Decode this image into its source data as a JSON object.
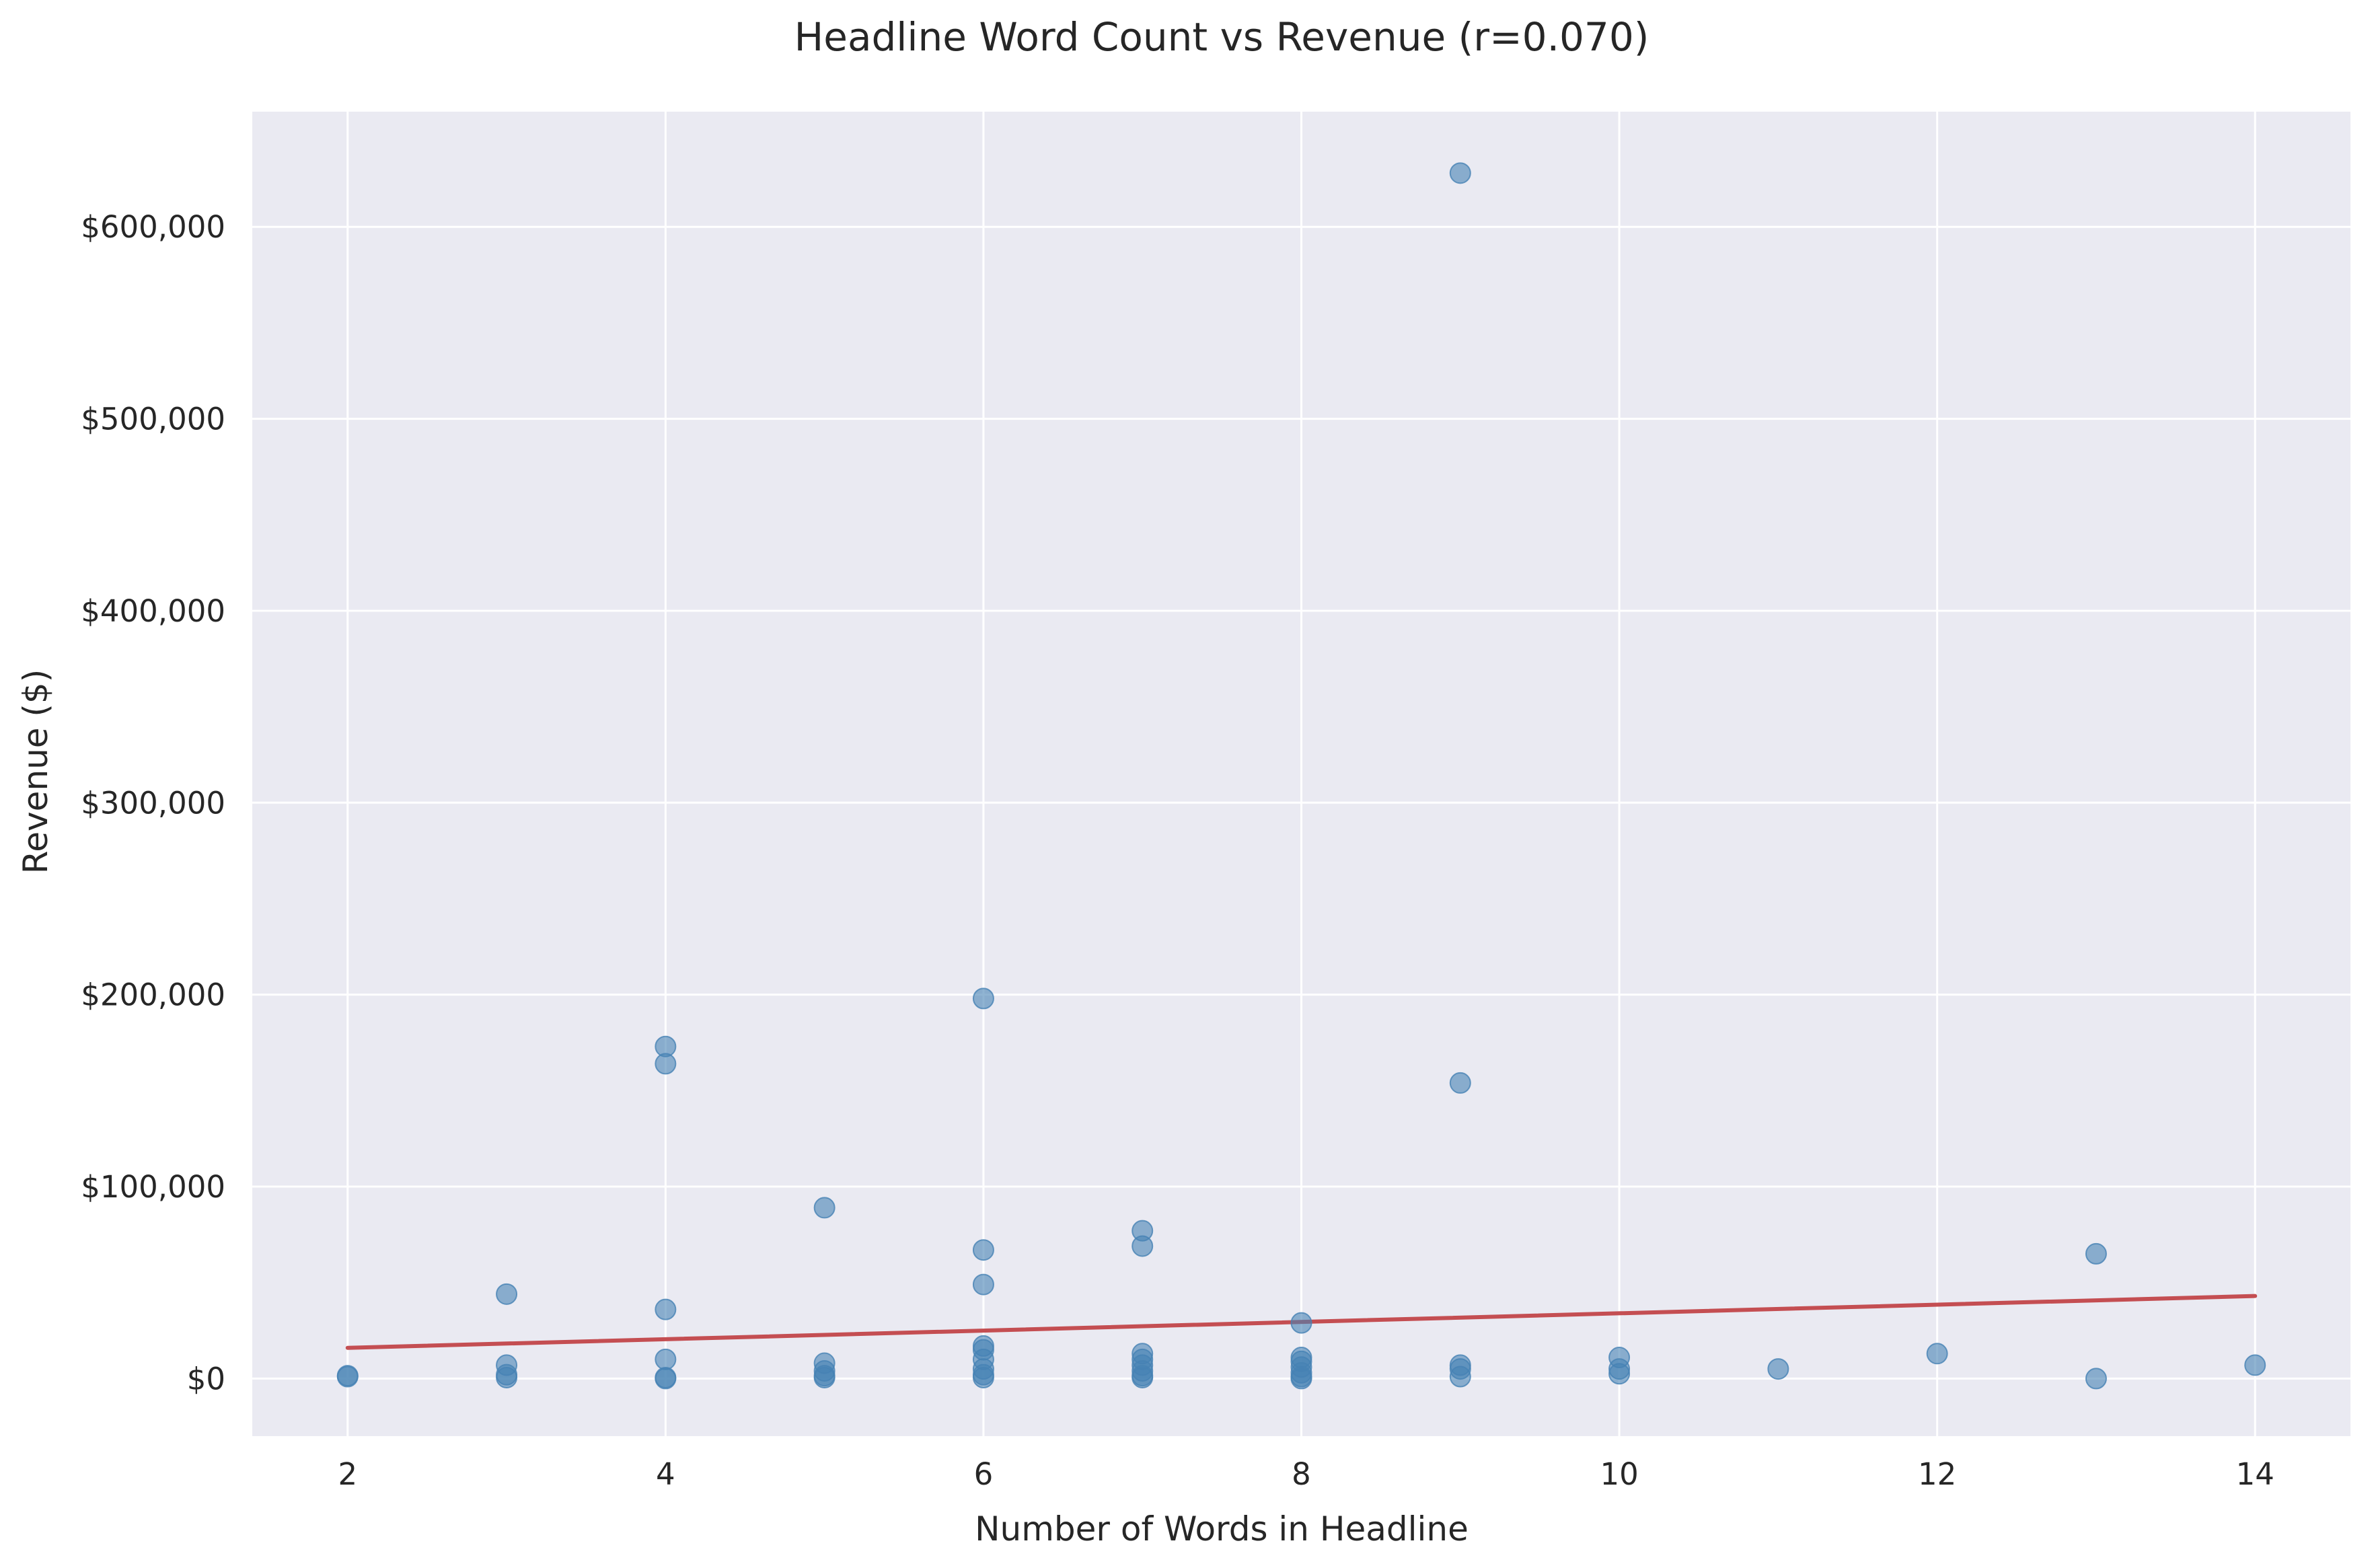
{
  "chart_data": {
    "type": "scatter",
    "title": "Headline Word Count vs Revenue (r=0.070)",
    "xlabel": "Number of Words in Headline",
    "ylabel": "Revenue ($)",
    "xlim": [
      1.4,
      14.6
    ],
    "ylim": [
      -30000,
      660000
    ],
    "xticks": [
      2,
      4,
      6,
      8,
      10,
      12,
      14
    ],
    "xtick_labels": [
      "2",
      "4",
      "6",
      "8",
      "10",
      "12",
      "14"
    ],
    "yticks": [
      0,
      100000,
      200000,
      300000,
      400000,
      500000,
      600000
    ],
    "ytick_labels": [
      "$0",
      "$100,000",
      "$200,000",
      "$300,000",
      "$400,000",
      "$500,000",
      "$600,000"
    ],
    "grid": true,
    "background": "#eaeaf2",
    "point_color": "#4682b4",
    "line_color": "#c44e52",
    "points": [
      {
        "x": 2,
        "y": 1000
      },
      {
        "x": 2,
        "y": 1500
      },
      {
        "x": 3,
        "y": 44000
      },
      {
        "x": 3,
        "y": 7000
      },
      {
        "x": 3,
        "y": 2000
      },
      {
        "x": 3,
        "y": 500
      },
      {
        "x": 4,
        "y": 173000
      },
      {
        "x": 4,
        "y": 164000
      },
      {
        "x": 4,
        "y": 36000
      },
      {
        "x": 4,
        "y": 10000
      },
      {
        "x": 4,
        "y": 500
      },
      {
        "x": 4,
        "y": 0
      },
      {
        "x": 5,
        "y": 89000
      },
      {
        "x": 5,
        "y": 8000
      },
      {
        "x": 5,
        "y": 4000
      },
      {
        "x": 5,
        "y": 1500
      },
      {
        "x": 5,
        "y": 500
      },
      {
        "x": 6,
        "y": 198000
      },
      {
        "x": 6,
        "y": 67000
      },
      {
        "x": 6,
        "y": 49000
      },
      {
        "x": 6,
        "y": 17000
      },
      {
        "x": 6,
        "y": 15000
      },
      {
        "x": 6,
        "y": 10000
      },
      {
        "x": 6,
        "y": 5000
      },
      {
        "x": 6,
        "y": 2000
      },
      {
        "x": 6,
        "y": 500
      },
      {
        "x": 7,
        "y": 77000
      },
      {
        "x": 7,
        "y": 69000
      },
      {
        "x": 7,
        "y": 13000
      },
      {
        "x": 7,
        "y": 10000
      },
      {
        "x": 7,
        "y": 7000
      },
      {
        "x": 7,
        "y": 4000
      },
      {
        "x": 7,
        "y": 1500
      },
      {
        "x": 7,
        "y": 500
      },
      {
        "x": 8,
        "y": 29000
      },
      {
        "x": 8,
        "y": 11000
      },
      {
        "x": 8,
        "y": 9000
      },
      {
        "x": 8,
        "y": 6000
      },
      {
        "x": 8,
        "y": 3000
      },
      {
        "x": 8,
        "y": 1000
      },
      {
        "x": 8,
        "y": 0
      },
      {
        "x": 9,
        "y": 628000
      },
      {
        "x": 9,
        "y": 154000
      },
      {
        "x": 9,
        "y": 7000
      },
      {
        "x": 9,
        "y": 5000
      },
      {
        "x": 9,
        "y": 1000
      },
      {
        "x": 10,
        "y": 11000
      },
      {
        "x": 10,
        "y": 5000
      },
      {
        "x": 10,
        "y": 2500
      },
      {
        "x": 11,
        "y": 5000
      },
      {
        "x": 12,
        "y": 13000
      },
      {
        "x": 13,
        "y": 65000
      },
      {
        "x": 13,
        "y": 0
      },
      {
        "x": 14,
        "y": 7000
      }
    ],
    "trendline": {
      "x": [
        2,
        14
      ],
      "y": [
        16000,
        43000
      ]
    }
  }
}
